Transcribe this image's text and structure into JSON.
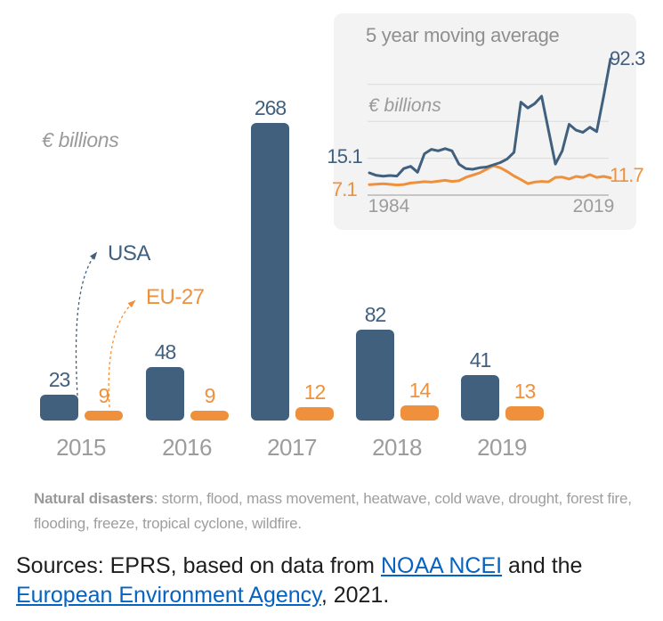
{
  "note": {
    "lead": "Natural disasters",
    "text": ": storm, flood, mass movement, heatwave, cold wave, drought, forest fire, flooding, freeze, tropical cyclone, wildfire."
  },
  "sources": {
    "text_before": "Sources: EPRS, based on data from ",
    "link_noaa": "NOAA NCEI",
    "text_middle": " and the ",
    "link_eea": "European Environment Agency",
    "text_after": ", 2021."
  },
  "colors": {
    "usa": "#41607E",
    "eu": "#EF913C",
    "gray_text": "#9C9C9C",
    "inset_background": "#F3F3F4",
    "gridline": "#DBDBDB",
    "axis_line": "#ABABAB",
    "link": "#0563C1"
  },
  "chart_data": [
    {
      "type": "bar",
      "title": "",
      "ylabel": "€ billions",
      "categories": [
        "2015",
        "2016",
        "2017",
        "2018",
        "2019"
      ],
      "series": [
        {
          "name": "USA",
          "color": "#41607E",
          "values": [
            23,
            48,
            268,
            82,
            41
          ]
        },
        {
          "name": "EU-27",
          "color": "#EF913C",
          "values": [
            9,
            9,
            12,
            14,
            13
          ]
        }
      ],
      "value_labels_shown": true,
      "legend": "callout-arrows"
    },
    {
      "type": "line",
      "title": "5 year moving average",
      "ylabel": "€ billions",
      "x_tick_labels": [
        "1984",
        "2019"
      ],
      "years": [
        1984,
        1985,
        1986,
        1987,
        1988,
        1989,
        1990,
        1991,
        1992,
        1993,
        1994,
        1995,
        1996,
        1997,
        1998,
        1999,
        2000,
        2001,
        2002,
        2003,
        2004,
        2005,
        2006,
        2007,
        2008,
        2009,
        2010,
        2011,
        2012,
        2013,
        2014,
        2015,
        2016,
        2017,
        2018,
        2019
      ],
      "ylim": [
        0,
        100
      ],
      "gridlines_y": [
        25,
        50,
        75
      ],
      "series": [
        {
          "name": "USA",
          "color": "#41607E",
          "first_value_label": "15.1",
          "last_value_label": "92.3",
          "values": [
            15.1,
            13.4,
            12.8,
            13.3,
            12.9,
            18.0,
            19.5,
            15.5,
            28.0,
            31.0,
            30.0,
            31.5,
            30.0,
            21.0,
            18.0,
            17.5,
            18.5,
            19.0,
            20.5,
            22.0,
            24.5,
            29.0,
            63.0,
            59.0,
            62.0,
            67.0,
            44.0,
            21.0,
            30.0,
            48.0,
            44.0,
            42.5,
            46.0,
            43.0,
            67.0,
            92.3
          ]
        },
        {
          "name": "EU-27",
          "color": "#EF913C",
          "first_value_label": "7.1",
          "last_value_label": "11.7",
          "values": [
            7.1,
            7.4,
            7.7,
            7.3,
            6.9,
            7.2,
            8.2,
            8.6,
            9.1,
            8.8,
            9.4,
            10.0,
            9.3,
            9.7,
            12.0,
            13.5,
            15.0,
            17.5,
            20.0,
            18.5,
            16.0,
            13.0,
            10.5,
            7.8,
            8.8,
            9.3,
            9.0,
            12.0,
            12.2,
            10.9,
            12.7,
            12.0,
            13.9,
            12.0,
            12.7,
            11.7
          ]
        }
      ]
    }
  ]
}
